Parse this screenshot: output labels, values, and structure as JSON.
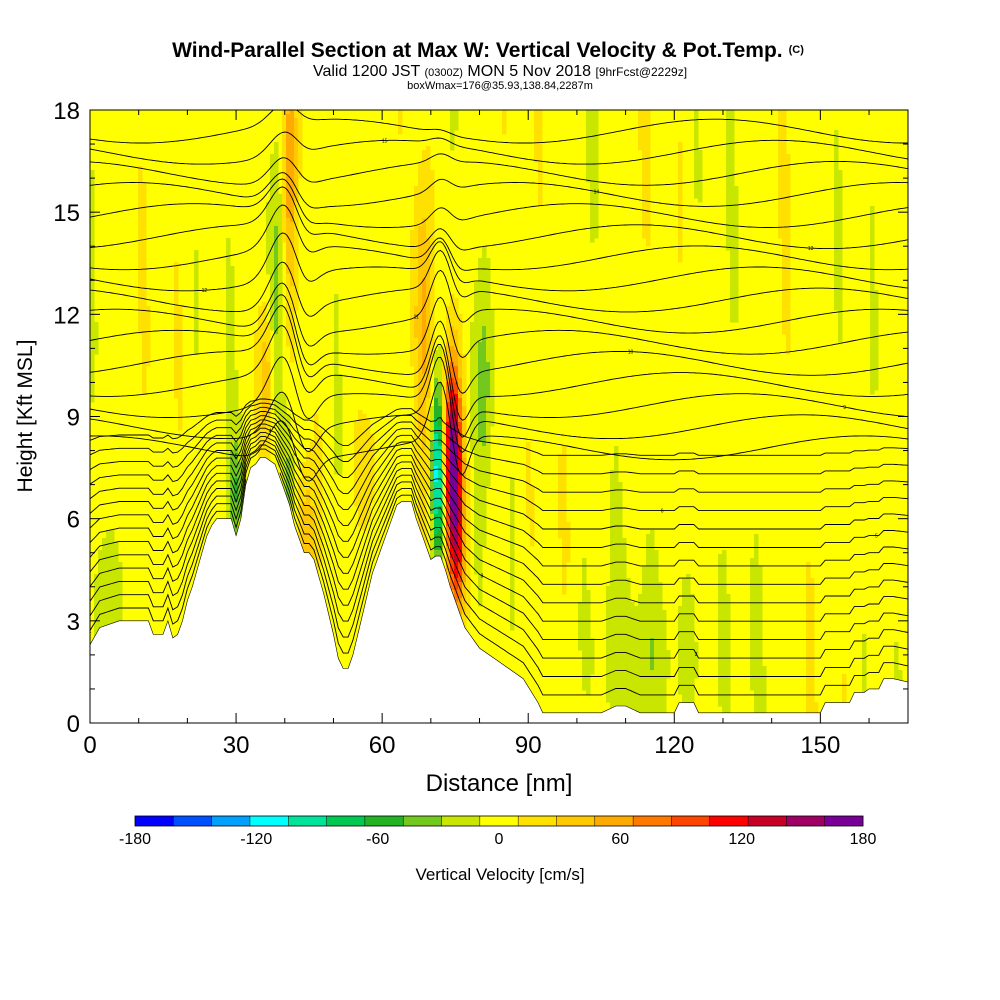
{
  "chart_data": {
    "type": "heatmap",
    "title": "Wind-Parallel Section at Max W: Vertical Velocity & Pot.Temp.",
    "title_unit": "(C)",
    "subtitle_parts": [
      "Valid 1200 JST",
      "(0300Z)",
      "MON 5 Nov 2018",
      "[9hrFcst@2229z]"
    ],
    "subtitle2": "boxWmax=176@35.93,138.84,2287m",
    "xlabel": "Distance [nm]",
    "ylabel": "Height [Kft MSL]",
    "xlim": [
      0,
      168
    ],
    "ylim": [
      0,
      18
    ],
    "xticks": [
      0,
      30,
      60,
      90,
      120,
      150
    ],
    "yticks": [
      0,
      3,
      6,
      9,
      12,
      15,
      18
    ],
    "colorbar_label": "Vertical Velocity [cm/s]",
    "colorbar_ticks": [
      -180,
      -120,
      -60,
      0,
      60,
      120,
      180
    ],
    "colorbar_range": [
      -180,
      180
    ],
    "colorbar_colors": [
      "#0000ff",
      "#0050ff",
      "#00a0ff",
      "#00ffff",
      "#00e39b",
      "#00c850",
      "#24b324",
      "#73c81e",
      "#c8e600",
      "#ffff00",
      "#ffe100",
      "#ffc800",
      "#ffaa00",
      "#ff7800",
      "#ff4600",
      "#ff0000",
      "#c80028",
      "#a00064",
      "#780096"
    ],
    "terrain_profile": [
      [
        0,
        2.3
      ],
      [
        2,
        2.8
      ],
      [
        6,
        3.0
      ],
      [
        12,
        3.0
      ],
      [
        13,
        2.6
      ],
      [
        15,
        2.6
      ],
      [
        16,
        3.0
      ],
      [
        17,
        2.5
      ],
      [
        18,
        2.6
      ],
      [
        19,
        3.0
      ],
      [
        20,
        3.6
      ],
      [
        21,
        4.0
      ],
      [
        22,
        4.5
      ],
      [
        23,
        5.0
      ],
      [
        24,
        5.5
      ],
      [
        25,
        5.8
      ],
      [
        26,
        6.0
      ],
      [
        29,
        6.0
      ],
      [
        30,
        5.5
      ],
      [
        31,
        6.0
      ],
      [
        32,
        7.0
      ],
      [
        33,
        7.5
      ],
      [
        34,
        7.6
      ],
      [
        35,
        7.8
      ],
      [
        36,
        7.8
      ],
      [
        38,
        7.6
      ],
      [
        39,
        7.2
      ],
      [
        40,
        6.8
      ],
      [
        41,
        6.4
      ],
      [
        42,
        5.8
      ],
      [
        43,
        5.4
      ],
      [
        44,
        5.0
      ],
      [
        45,
        5.0
      ],
      [
        46,
        4.8
      ],
      [
        47,
        4.3
      ],
      [
        48,
        3.8
      ],
      [
        49,
        3.2
      ],
      [
        50,
        2.6
      ],
      [
        51,
        1.9
      ],
      [
        52,
        1.6
      ],
      [
        53,
        1.6
      ],
      [
        54,
        2.0
      ],
      [
        55,
        2.6
      ],
      [
        56,
        3.2
      ],
      [
        57,
        3.8
      ],
      [
        58,
        4.4
      ],
      [
        59,
        4.8
      ],
      [
        60,
        5.2
      ],
      [
        61,
        5.6
      ],
      [
        62,
        6.0
      ],
      [
        63,
        6.4
      ],
      [
        64,
        6.5
      ],
      [
        66,
        6.5
      ],
      [
        67,
        6.0
      ],
      [
        68,
        5.6
      ],
      [
        69,
        5.2
      ],
      [
        70,
        4.8
      ],
      [
        71,
        4.9
      ],
      [
        72,
        4.9
      ],
      [
        73,
        4.5
      ],
      [
        74,
        4.0
      ],
      [
        75,
        3.6
      ],
      [
        76,
        3.2
      ],
      [
        77,
        2.8
      ],
      [
        78,
        2.6
      ],
      [
        80,
        2.2
      ],
      [
        83,
        1.9
      ],
      [
        86,
        1.6
      ],
      [
        89,
        1.3
      ],
      [
        92,
        0.6
      ],
      [
        93,
        0.3
      ],
      [
        105,
        0.3
      ],
      [
        108,
        0.5
      ],
      [
        110,
        0.5
      ],
      [
        113,
        0.3
      ],
      [
        120,
        0.3
      ],
      [
        121,
        0.6
      ],
      [
        124,
        0.6
      ],
      [
        125,
        0.3
      ],
      [
        150,
        0.3
      ],
      [
        151,
        0.6
      ],
      [
        156,
        0.6
      ],
      [
        157,
        0.9
      ],
      [
        159,
        0.9
      ],
      [
        160,
        1.0
      ],
      [
        162,
        1.0
      ],
      [
        163,
        1.3
      ],
      [
        165,
        1.3
      ],
      [
        168,
        1.2
      ]
    ],
    "theta_label_values": [
      "1",
      "2",
      "3",
      "4",
      "5",
      "6",
      "7",
      "8",
      "9",
      "10",
      "11",
      "12",
      "13",
      "14",
      "15",
      "16",
      "17",
      "18"
    ]
  }
}
